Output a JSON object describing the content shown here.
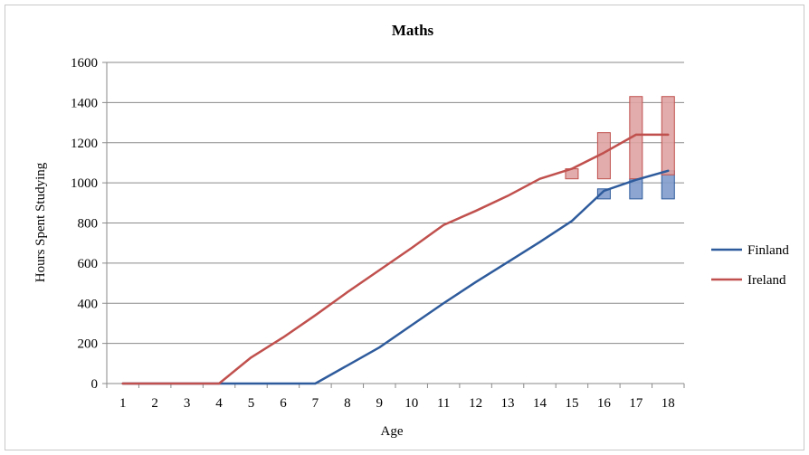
{
  "chart_data": {
    "type": "line",
    "title": "Maths",
    "xlabel": "Age",
    "ylabel": "Hours Spent Studying",
    "xlim": [
      1,
      18
    ],
    "ylim": [
      0,
      1600
    ],
    "x_ticks": [
      "1",
      "2",
      "3",
      "4",
      "5",
      "6",
      "7",
      "8",
      "9",
      "10",
      "11",
      "12",
      "13",
      "14",
      "15",
      "16",
      "17",
      "18"
    ],
    "y_ticks": [
      "0",
      "200",
      "400",
      "600",
      "800",
      "1000",
      "1200",
      "1400",
      "1600"
    ],
    "grid": "horizontal",
    "legend_position": "right",
    "series": [
      {
        "name": "Finland",
        "color": "#2e5b9c",
        "x": [
          1,
          2,
          3,
          4,
          5,
          6,
          7,
          8,
          9,
          10,
          11,
          12,
          13,
          14,
          15,
          16,
          17,
          18
        ],
        "values": [
          0,
          0,
          0,
          0,
          0,
          0,
          0,
          90,
          180,
          290,
          400,
          505,
          605,
          705,
          810,
          960,
          1015,
          1060
        ]
      },
      {
        "name": "Ireland",
        "color": "#c0504d",
        "x": [
          1,
          2,
          3,
          4,
          5,
          6,
          7,
          8,
          9,
          10,
          11,
          12,
          13,
          14,
          15,
          16,
          17,
          18
        ],
        "values": [
          0,
          0,
          0,
          0,
          130,
          230,
          340,
          455,
          565,
          675,
          790,
          860,
          935,
          1020,
          1070,
          1150,
          1240,
          1240
        ]
      }
    ],
    "range_boxes": [
      {
        "series": "Finland",
        "x": 16,
        "low": 920,
        "high": 970
      },
      {
        "series": "Finland",
        "x": 17,
        "low": 920,
        "high": 1020
      },
      {
        "series": "Finland",
        "x": 18,
        "low": 920,
        "high": 1060
      },
      {
        "series": "Ireland",
        "x": 15,
        "low": 1020,
        "high": 1070
      },
      {
        "series": "Ireland",
        "x": 16,
        "low": 1020,
        "high": 1250
      },
      {
        "series": "Ireland",
        "x": 17,
        "low": 1020,
        "high": 1430
      },
      {
        "series": "Ireland",
        "x": 18,
        "low": 1040,
        "high": 1430
      }
    ]
  }
}
